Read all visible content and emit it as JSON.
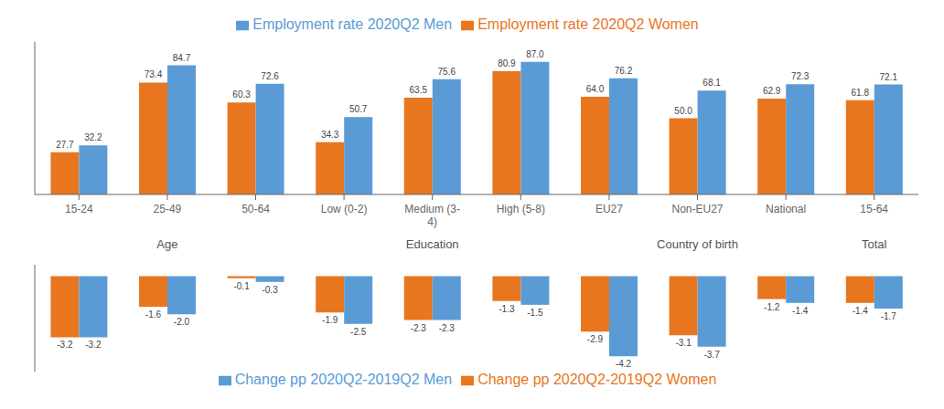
{
  "chart_data": [
    {
      "type": "bar",
      "categories": [
        "15-24",
        "25-49",
        "50-64",
        "Low (0-2)",
        "Medium (3-\n4)",
        "High (5-8)",
        "EU27",
        "Non-EU27",
        "National",
        "15-64"
      ],
      "series": [
        {
          "name": "Employment rate 2020Q2 Women",
          "color": "#E8761E",
          "values": [
            27.7,
            73.4,
            60.3,
            34.3,
            63.5,
            80.9,
            64.0,
            50.0,
            62.9,
            61.8
          ],
          "value_labels": [
            "27.7",
            "73.4",
            "60.3",
            "34.3",
            "63.5",
            "80.9",
            "64.0",
            "50.0",
            "62.9",
            "61.8"
          ]
        },
        {
          "name": "Employment rate 2020Q2 Men",
          "color": "#5B9BD5",
          "values": [
            32.2,
            84.7,
            72.6,
            50.7,
            75.6,
            87.0,
            76.2,
            68.1,
            72.3,
            72.1
          ],
          "value_labels": [
            "32.2",
            "84.7",
            "72.6",
            "50.7",
            "75.6",
            "87.0",
            "76.2",
            "68.1",
            "72.3",
            "72.1"
          ]
        }
      ],
      "ylim": [
        0,
        100
      ],
      "data_labels": true,
      "tick_labels": "x",
      "grid": false,
      "legend": "top",
      "annotations": [
        {
          "text": "Age",
          "categories": [
            "15-24",
            "25-49",
            "50-64"
          ]
        },
        {
          "text": "Education",
          "categories": [
            "Low (0-2)",
            "Medium (3-\n4)",
            "High (5-8)"
          ]
        },
        {
          "text": "Country of birth",
          "categories": [
            "EU27",
            "Non-EU27",
            "National"
          ]
        },
        {
          "text": "Total",
          "categories": [
            "15-64"
          ]
        }
      ]
    },
    {
      "type": "bar",
      "categories": [
        "15-24",
        "25-49",
        "50-64",
        "Low (0-2)",
        "Medium (3-\n4)",
        "High (5-8)",
        "EU27",
        "Non-EU27",
        "National",
        "15-64"
      ],
      "series": [
        {
          "name": "Change pp 2020Q2-2019Q2 Women",
          "color": "#E8761E",
          "values": [
            -3.2,
            -1.6,
            -0.1,
            -1.9,
            -2.3,
            -1.3,
            -2.9,
            -3.1,
            -1.2,
            -1.4
          ],
          "value_labels": [
            "-3.2",
            "-1.6",
            "-0.1",
            "-1.9",
            "-2.3",
            "-1.3",
            "-2.9",
            "-3.1",
            "-1.2",
            "-1.4"
          ]
        },
        {
          "name": "Change pp 2020Q2-2019Q2 Men",
          "color": "#5B9BD5",
          "values": [
            -3.2,
            -2.0,
            -0.3,
            -2.5,
            -2.3,
            -1.5,
            -4.2,
            -3.7,
            -1.4,
            -1.7
          ],
          "value_labels": [
            "-3.2",
            "-2.0",
            "-0.3",
            "-2.5",
            "-2.3",
            "-1.5",
            "-4.2",
            "-3.7",
            "-1.4",
            "-1.7"
          ]
        }
      ],
      "ylim": [
        -5.0,
        0.6
      ],
      "data_labels": true,
      "tick_labels": false,
      "grid": false,
      "legend": "bottom"
    }
  ]
}
